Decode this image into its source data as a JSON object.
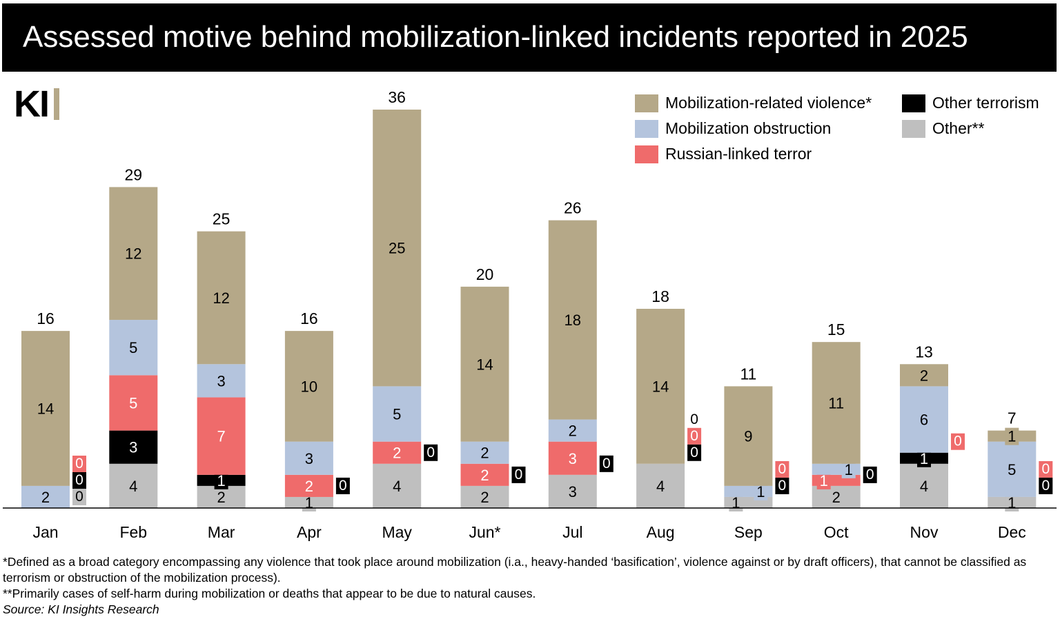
{
  "title": "Assessed motive behind mobilization-linked incidents reported in 2025",
  "logo_text": "KI",
  "chart_data": {
    "type": "bar",
    "stacked": true,
    "title": "Assessed motive behind mobilization-linked incidents reported in 2025",
    "xlabel": "",
    "ylabel": "",
    "ylim": [
      0,
      36
    ],
    "grid": false,
    "legend_position": "top-right",
    "categories": [
      "Jan",
      "Feb",
      "Mar",
      "Apr",
      "May",
      "Jun*",
      "Jul",
      "Aug",
      "Sep",
      "Oct",
      "Nov",
      "Dec"
    ],
    "totals": [
      16,
      29,
      25,
      16,
      36,
      20,
      26,
      18,
      11,
      15,
      13,
      7
    ],
    "series": [
      {
        "name": "Other**",
        "color": "#bfbfbf",
        "text_color": "#000000",
        "values": [
          0,
          4,
          2,
          1,
          4,
          2,
          3,
          4,
          1,
          2,
          4,
          1
        ]
      },
      {
        "name": "Other terrorism",
        "color": "#000000",
        "text_color": "#ffffff",
        "values": [
          0,
          3,
          1,
          0,
          0,
          0,
          0,
          0,
          0,
          0,
          1,
          0
        ]
      },
      {
        "name": "Russian-linked terror",
        "color": "#ef6b6b",
        "text_color": "#ffffff",
        "values": [
          0,
          5,
          7,
          2,
          2,
          2,
          3,
          0,
          0,
          1,
          0,
          0
        ]
      },
      {
        "name": "Mobilization obstruction",
        "color": "#b4c4dd",
        "text_color": "#000000",
        "values": [
          2,
          5,
          3,
          3,
          5,
          2,
          2,
          0,
          1,
          1,
          6,
          5
        ]
      },
      {
        "name": "Mobilization-related violence*",
        "color": "#b5a888",
        "text_color": "#000000",
        "values": [
          14,
          12,
          12,
          10,
          25,
          14,
          18,
          14,
          9,
          11,
          2,
          1
        ]
      }
    ]
  },
  "legend": [
    {
      "label": "Mobilization-related violence*",
      "color": "#b5a888"
    },
    {
      "label": "Other terrorism",
      "color": "#000000"
    },
    {
      "label": "Mobilization obstruction",
      "color": "#b4c4dd"
    },
    {
      "label": "Other**",
      "color": "#bfbfbf"
    },
    {
      "label": "Russian-linked terror",
      "color": "#ef6b6b"
    }
  ],
  "footnotes": {
    "note1": "*Defined as a broad category encompassing any violence that took place around mobilization (i.a., heavy-handed ‘basification’, violence against or by draft officers), that cannot be classified as terrorism or obstruction of the mobilization process).",
    "note2": "**Primarily cases of self-harm during mobilization or deaths that appear to be due to natural causes.",
    "source": "Source: KI Insights Research"
  }
}
